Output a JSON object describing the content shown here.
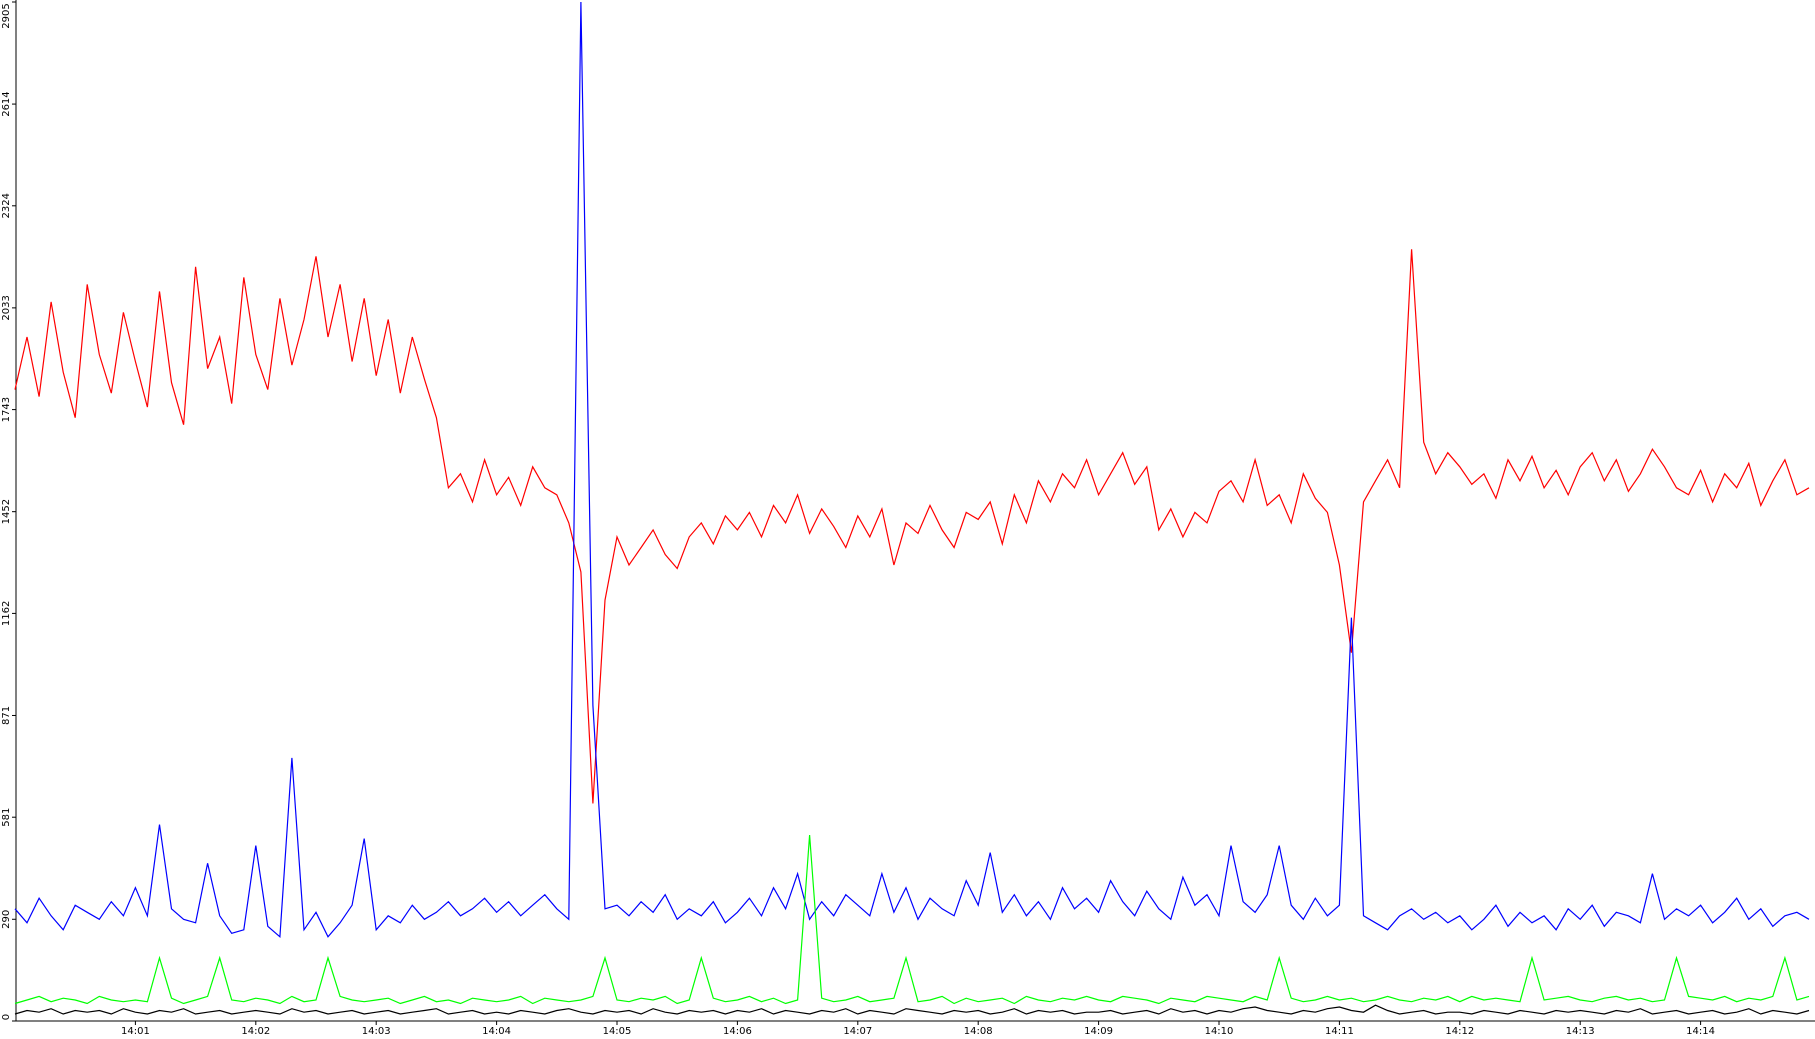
{
  "chart_data": {
    "type": "line",
    "categories": [
      null,
      null,
      null,
      null,
      null,
      null,
      null,
      null,
      null,
      null,
      "14:01",
      null,
      null,
      null,
      null,
      null,
      null,
      null,
      null,
      null,
      "14:02",
      null,
      null,
      null,
      null,
      null,
      null,
      null,
      null,
      null,
      "14:03",
      null,
      null,
      null,
      null,
      null,
      null,
      null,
      null,
      null,
      "14:04",
      null,
      null,
      null,
      null,
      null,
      null,
      null,
      null,
      null,
      "14:05",
      null,
      null,
      null,
      null,
      null,
      null,
      null,
      null,
      null,
      "14:06",
      null,
      null,
      null,
      null,
      null,
      null,
      null,
      null,
      null,
      "14:07",
      null,
      null,
      null,
      null,
      null,
      null,
      null,
      null,
      null,
      "14:08",
      null,
      null,
      null,
      null,
      null,
      null,
      null,
      null,
      null,
      "14:09",
      null,
      null,
      null,
      null,
      null,
      null,
      null,
      null,
      null,
      "14:10",
      null,
      null,
      null,
      null,
      null,
      null,
      null,
      null,
      null,
      "14:11",
      null,
      null,
      null,
      null,
      null,
      null,
      null,
      null,
      null,
      "14:12",
      null,
      null,
      null,
      null,
      null,
      null,
      null,
      null,
      null,
      "14:13",
      null,
      null,
      null,
      null,
      null,
      null,
      null,
      null,
      null,
      "14:14",
      null,
      null,
      null,
      null,
      null,
      null,
      null,
      null,
      null
    ],
    "series": [
      {
        "color": "#ff0000",
        "values": [
          1800,
          1950,
          1780,
          2050,
          1850,
          1720,
          2100,
          1900,
          1790,
          2020,
          1880,
          1750,
          2080,
          1820,
          1700,
          2150,
          1860,
          1950,
          1760,
          2120,
          1900,
          1800,
          2060,
          1870,
          2000,
          2180,
          1950,
          2100,
          1880,
          2060,
          1840,
          2000,
          1790,
          1950,
          1830,
          1720,
          1520,
          1560,
          1480,
          1600,
          1500,
          1550,
          1470,
          1580,
          1520,
          1500,
          1420,
          1280,
          620,
          1200,
          1380,
          1300,
          1350,
          1400,
          1330,
          1290,
          1380,
          1420,
          1360,
          1440,
          1400,
          1450,
          1380,
          1470,
          1420,
          1500,
          1390,
          1460,
          1410,
          1350,
          1440,
          1380,
          1460,
          1300,
          1420,
          1390,
          1470,
          1400,
          1350,
          1450,
          1430,
          1480,
          1360,
          1500,
          1420,
          1540,
          1480,
          1560,
          1520,
          1600,
          1500,
          1560,
          1620,
          1530,
          1580,
          1400,
          1460,
          1380,
          1450,
          1420,
          1510,
          1540,
          1480,
          1600,
          1470,
          1500,
          1420,
          1560,
          1490,
          1450,
          1300,
          1050,
          1480,
          1540,
          1600,
          1520,
          2200,
          1650,
          1560,
          1620,
          1580,
          1530,
          1560,
          1490,
          1600,
          1540,
          1610,
          1520,
          1570,
          1500,
          1580,
          1620,
          1540,
          1600,
          1510,
          1560,
          1630,
          1580,
          1520,
          1500,
          1570,
          1480,
          1560,
          1520,
          1590,
          1470,
          1540,
          1600,
          1500,
          1520
        ]
      },
      {
        "color": "#0000ff",
        "values": [
          320,
          280,
          350,
          300,
          260,
          330,
          310,
          290,
          340,
          300,
          380,
          300,
          560,
          320,
          290,
          280,
          450,
          300,
          250,
          260,
          500,
          270,
          240,
          750,
          260,
          310,
          240,
          280,
          330,
          520,
          260,
          300,
          280,
          330,
          290,
          310,
          340,
          300,
          320,
          350,
          310,
          340,
          300,
          330,
          360,
          320,
          290,
          2905,
          900,
          320,
          330,
          300,
          340,
          310,
          360,
          290,
          320,
          300,
          340,
          280,
          310,
          350,
          300,
          380,
          320,
          420,
          290,
          340,
          300,
          360,
          330,
          300,
          420,
          310,
          380,
          290,
          350,
          320,
          300,
          400,
          330,
          480,
          310,
          360,
          300,
          340,
          290,
          380,
          320,
          350,
          310,
          400,
          340,
          300,
          370,
          320,
          290,
          410,
          330,
          360,
          300,
          500,
          340,
          310,
          360,
          500,
          330,
          290,
          350,
          300,
          330,
          1150,
          300,
          280,
          260,
          300,
          320,
          290,
          310,
          280,
          300,
          260,
          290,
          330,
          270,
          310,
          280,
          300,
          260,
          320,
          290,
          330,
          270,
          310,
          300,
          280,
          420,
          290,
          320,
          300,
          330,
          280,
          310,
          350,
          290,
          320,
          270,
          300,
          310,
          290
        ]
      },
      {
        "color": "#00ff00",
        "values": [
          50,
          60,
          70,
          55,
          65,
          60,
          50,
          70,
          60,
          55,
          60,
          55,
          180,
          65,
          50,
          60,
          70,
          180,
          60,
          55,
          65,
          60,
          50,
          70,
          55,
          60,
          180,
          70,
          60,
          55,
          60,
          65,
          50,
          60,
          70,
          55,
          60,
          50,
          65,
          60,
          55,
          60,
          70,
          50,
          65,
          60,
          55,
          60,
          70,
          180,
          60,
          55,
          65,
          60,
          70,
          50,
          60,
          180,
          65,
          55,
          60,
          70,
          55,
          65,
          50,
          60,
          530,
          65,
          55,
          60,
          70,
          55,
          60,
          65,
          180,
          55,
          60,
          70,
          50,
          65,
          55,
          60,
          65,
          50,
          70,
          60,
          55,
          65,
          60,
          70,
          60,
          55,
          70,
          65,
          60,
          50,
          65,
          60,
          55,
          70,
          65,
          60,
          55,
          70,
          60,
          180,
          65,
          55,
          60,
          70,
          60,
          65,
          55,
          60,
          70,
          60,
          55,
          65,
          60,
          70,
          55,
          70,
          60,
          65,
          60,
          55,
          180,
          60,
          65,
          70,
          60,
          55,
          65,
          70,
          60,
          65,
          55,
          60,
          180,
          70,
          65,
          60,
          70,
          55,
          65,
          60,
          70,
          180,
          60,
          70
        ]
      },
      {
        "color": "#000000",
        "values": [
          20,
          30,
          25,
          35,
          20,
          30,
          25,
          30,
          20,
          35,
          25,
          20,
          30,
          25,
          35,
          20,
          25,
          30,
          20,
          25,
          30,
          25,
          20,
          35,
          25,
          30,
          20,
          25,
          30,
          20,
          25,
          30,
          20,
          25,
          30,
          35,
          20,
          25,
          30,
          20,
          25,
          20,
          30,
          25,
          20,
          30,
          35,
          25,
          20,
          30,
          25,
          30,
          20,
          35,
          25,
          20,
          30,
          25,
          30,
          20,
          30,
          25,
          35,
          20,
          30,
          25,
          20,
          30,
          25,
          35,
          20,
          30,
          25,
          20,
          35,
          30,
          25,
          20,
          30,
          25,
          30,
          20,
          25,
          35,
          20,
          30,
          25,
          30,
          20,
          25,
          25,
          30,
          20,
          25,
          30,
          20,
          35,
          25,
          30,
          20,
          30,
          25,
          35,
          40,
          30,
          25,
          20,
          30,
          25,
          35,
          40,
          30,
          25,
          45,
          30,
          20,
          25,
          30,
          20,
          25,
          25,
          20,
          30,
          25,
          20,
          30,
          25,
          20,
          30,
          25,
          30,
          25,
          20,
          30,
          25,
          35,
          20,
          25,
          30,
          20,
          25,
          30,
          20,
          25,
          35,
          20,
          30,
          25,
          20,
          30
        ]
      }
    ],
    "ylim": [
      0,
      2905
    ],
    "yticks": [
      0,
      290,
      581,
      871,
      1162,
      1452,
      1743,
      2033,
      2324,
      2614,
      2905
    ]
  }
}
